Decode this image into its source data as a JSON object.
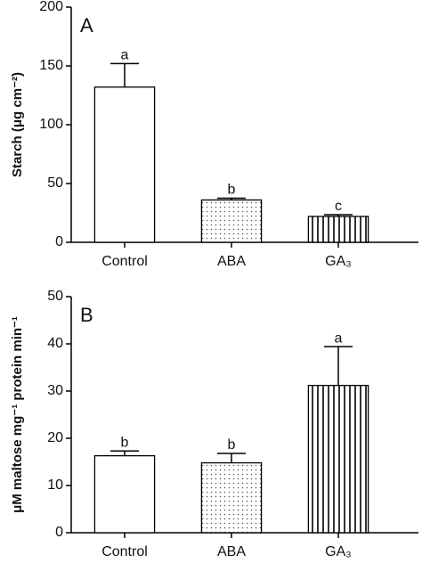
{
  "chart_data": [
    {
      "type": "bar",
      "panel": "A",
      "ylabel": "Starch (μg cm⁻²)",
      "categories": [
        "Control",
        "ABA",
        "GA₃"
      ],
      "values": [
        132,
        36,
        22
      ],
      "errors": [
        20,
        1.5,
        1.5
      ],
      "annotations": [
        "a",
        "b",
        "c"
      ],
      "patterns": [
        "none",
        "dots",
        "vlines"
      ],
      "color": "#000000",
      "ylim": [
        0,
        200
      ],
      "yticks": [
        0,
        50,
        100,
        150,
        200
      ]
    },
    {
      "type": "bar",
      "panel": "B",
      "ylabel": "μM maltose mg⁻¹ protein min⁻¹",
      "categories": [
        "Control",
        "ABA",
        "GA₃"
      ],
      "values": [
        16.3,
        14.8,
        31.2
      ],
      "errors": [
        1,
        2,
        8.2
      ],
      "annotations": [
        "b",
        "b",
        "a"
      ],
      "patterns": [
        "none",
        "dots",
        "vlines"
      ],
      "color": "#000000",
      "ylim": [
        0,
        50
      ],
      "yticks": [
        0,
        10,
        20,
        30,
        40,
        50
      ]
    }
  ]
}
